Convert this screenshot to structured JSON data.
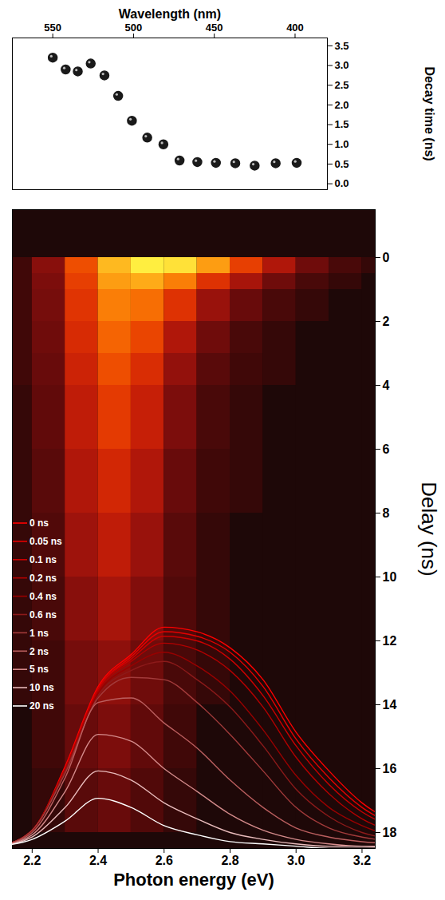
{
  "chart_data": [
    {
      "type": "scatter",
      "x_label": "Wavelength (nm)",
      "y_label": "Decay time (ns)",
      "x": [
        550,
        542,
        534.5,
        526.5,
        518,
        509.5,
        501,
        491.5,
        481.5,
        471.5,
        460.5,
        449,
        437,
        425,
        412,
        399
      ],
      "values": [
        3.2,
        2.9,
        2.85,
        3.05,
        2.75,
        2.23,
        1.6,
        1.17,
        1.0,
        0.59,
        0.55,
        0.53,
        0.52,
        0.46,
        0.52,
        0.53
      ],
      "color": "#1a1a1a",
      "marker": "circle",
      "xlim": [
        575,
        380
      ],
      "xticks": [
        550,
        500,
        450,
        400
      ],
      "ylim": [
        -0.15,
        3.7
      ],
      "yticks": [
        {
          "value": 0,
          "label": "0.0"
        },
        0.5,
        {
          "value": 1,
          "label": "1.0"
        },
        1.5,
        {
          "value": 2,
          "label": "2.0"
        },
        2.5,
        {
          "value": 3,
          "label": "3.0"
        },
        3.5
      ]
    },
    {
      "type": "heatmap",
      "x_label": "Photon energy (eV)",
      "y_label": "Delay (ns)",
      "x_bins": [
        2.1,
        2.2,
        2.3,
        2.4,
        2.5,
        2.6,
        2.7,
        2.8,
        2.9,
        3.0,
        3.1,
        3.2,
        3.3
      ],
      "y_bins": [
        0,
        0.5,
        1,
        2,
        3,
        4,
        6,
        8,
        10,
        12,
        14,
        16,
        18
      ],
      "cells": [
        [
          0.02,
          0.12,
          0.45,
          0.8,
          1.0,
          0.95,
          0.7,
          0.4,
          0.2,
          0.08,
          0.03,
          0.01
        ],
        [
          0.02,
          0.1,
          0.4,
          0.7,
          0.75,
          0.6,
          0.35,
          0.18,
          0.08,
          0.03,
          0.01,
          0.0
        ],
        [
          0.02,
          0.09,
          0.36,
          0.6,
          0.55,
          0.35,
          0.15,
          0.07,
          0.03,
          0.01,
          0.0,
          0.0
        ],
        [
          0.02,
          0.08,
          0.32,
          0.52,
          0.42,
          0.2,
          0.08,
          0.03,
          0.01,
          0.0,
          0.0,
          0.0
        ],
        [
          0.02,
          0.07,
          0.28,
          0.45,
          0.33,
          0.14,
          0.05,
          0.02,
          0.01,
          0.0,
          0.0,
          0.0
        ],
        [
          0.01,
          0.06,
          0.24,
          0.38,
          0.26,
          0.1,
          0.03,
          0.01,
          0.0,
          0.0,
          0.0,
          0.0
        ],
        [
          0.01,
          0.05,
          0.2,
          0.3,
          0.2,
          0.07,
          0.02,
          0.01,
          0.0,
          0.0,
          0.0,
          0.0
        ],
        [
          0.01,
          0.04,
          0.16,
          0.24,
          0.15,
          0.05,
          0.01,
          0.0,
          0.0,
          0.0,
          0.0,
          0.0
        ],
        [
          0.01,
          0.03,
          0.12,
          0.18,
          0.11,
          0.04,
          0.01,
          0.0,
          0.0,
          0.0,
          0.0,
          0.0
        ],
        [
          0.01,
          0.02,
          0.09,
          0.13,
          0.08,
          0.03,
          0.01,
          0.0,
          0.0,
          0.0,
          0.0,
          0.0
        ],
        [
          0.0,
          0.02,
          0.07,
          0.1,
          0.06,
          0.02,
          0.0,
          0.0,
          0.0,
          0.0,
          0.0,
          0.0
        ],
        [
          0.0,
          0.01,
          0.05,
          0.07,
          0.04,
          0.01,
          0.0,
          0.0,
          0.0,
          0.0,
          0.0,
          0.0
        ]
      ],
      "xlim": [
        2.14,
        3.24
      ],
      "xticks": [
        2.2,
        2.4,
        2.6,
        2.8,
        {
          "value": 3,
          "label": "3.0"
        },
        3.2
      ],
      "ylim": [
        18.5,
        -1.5
      ],
      "yticks": [
        0,
        2,
        4,
        6,
        8,
        10,
        12,
        14,
        16,
        18
      ]
    },
    {
      "type": "line",
      "x": [
        2.1,
        2.2,
        2.3,
        2.4,
        2.5,
        2.6,
        2.7,
        2.8,
        2.9,
        3.0,
        3.1,
        3.2,
        3.3
      ],
      "xlim": [
        2.14,
        3.24
      ],
      "ylim": [
        0,
        1.05
      ],
      "tick_labels": false,
      "legend": "left",
      "series": [
        {
          "name": "0 ns",
          "color": "#ff0000",
          "values": [
            0.01,
            0.08,
            0.36,
            0.71,
            0.85,
            0.97,
            0.95,
            0.88,
            0.74,
            0.51,
            0.34,
            0.2,
            0.11
          ]
        },
        {
          "name": "0.05 ns",
          "color": "#e60000",
          "values": [
            0.01,
            0.08,
            0.35,
            0.7,
            0.84,
            0.95,
            0.93,
            0.86,
            0.71,
            0.48,
            0.31,
            0.18,
            0.1
          ]
        },
        {
          "name": "0.1 ns",
          "color": "#cc0000",
          "values": [
            0.01,
            0.08,
            0.35,
            0.7,
            0.83,
            0.93,
            0.91,
            0.83,
            0.67,
            0.45,
            0.28,
            0.16,
            0.09
          ]
        },
        {
          "name": "0.2 ns",
          "color": "#b30000",
          "values": [
            0.01,
            0.08,
            0.35,
            0.69,
            0.82,
            0.9,
            0.87,
            0.78,
            0.62,
            0.4,
            0.24,
            0.13,
            0.07
          ]
        },
        {
          "name": "0.4 ns",
          "color": "#990000",
          "values": [
            0.01,
            0.08,
            0.34,
            0.68,
            0.8,
            0.86,
            0.8,
            0.69,
            0.52,
            0.32,
            0.18,
            0.1,
            0.05
          ]
        },
        {
          "name": "0.6 ns",
          "color": "#8c1a1a",
          "values": [
            0.01,
            0.08,
            0.34,
            0.67,
            0.78,
            0.82,
            0.74,
            0.62,
            0.45,
            0.26,
            0.14,
            0.07,
            0.04
          ]
        },
        {
          "name": "1 ns",
          "color": "#a33b3b",
          "values": [
            0.01,
            0.08,
            0.33,
            0.66,
            0.75,
            0.74,
            0.64,
            0.5,
            0.34,
            0.18,
            0.09,
            0.05,
            0.03
          ]
        },
        {
          "name": "2 ns",
          "color": "#bb5f5f",
          "values": [
            0.01,
            0.07,
            0.31,
            0.64,
            0.66,
            0.55,
            0.44,
            0.3,
            0.18,
            0.09,
            0.05,
            0.03,
            0.02
          ]
        },
        {
          "name": "5 ns",
          "color": "#d48b8b",
          "values": [
            0.01,
            0.06,
            0.25,
            0.5,
            0.47,
            0.35,
            0.25,
            0.15,
            0.08,
            0.04,
            0.02,
            0.01,
            0.01
          ]
        },
        {
          "name": "10 ns",
          "color": "#e9bcbc",
          "values": [
            0.01,
            0.05,
            0.18,
            0.34,
            0.3,
            0.2,
            0.13,
            0.07,
            0.04,
            0.02,
            0.01,
            0.01,
            0.0
          ]
        },
        {
          "name": "20 ns",
          "color": "#ffffff",
          "values": [
            0.01,
            0.04,
            0.12,
            0.22,
            0.18,
            0.1,
            0.06,
            0.03,
            0.02,
            0.01,
            0.0,
            0.0,
            0.0
          ]
        }
      ]
    }
  ]
}
